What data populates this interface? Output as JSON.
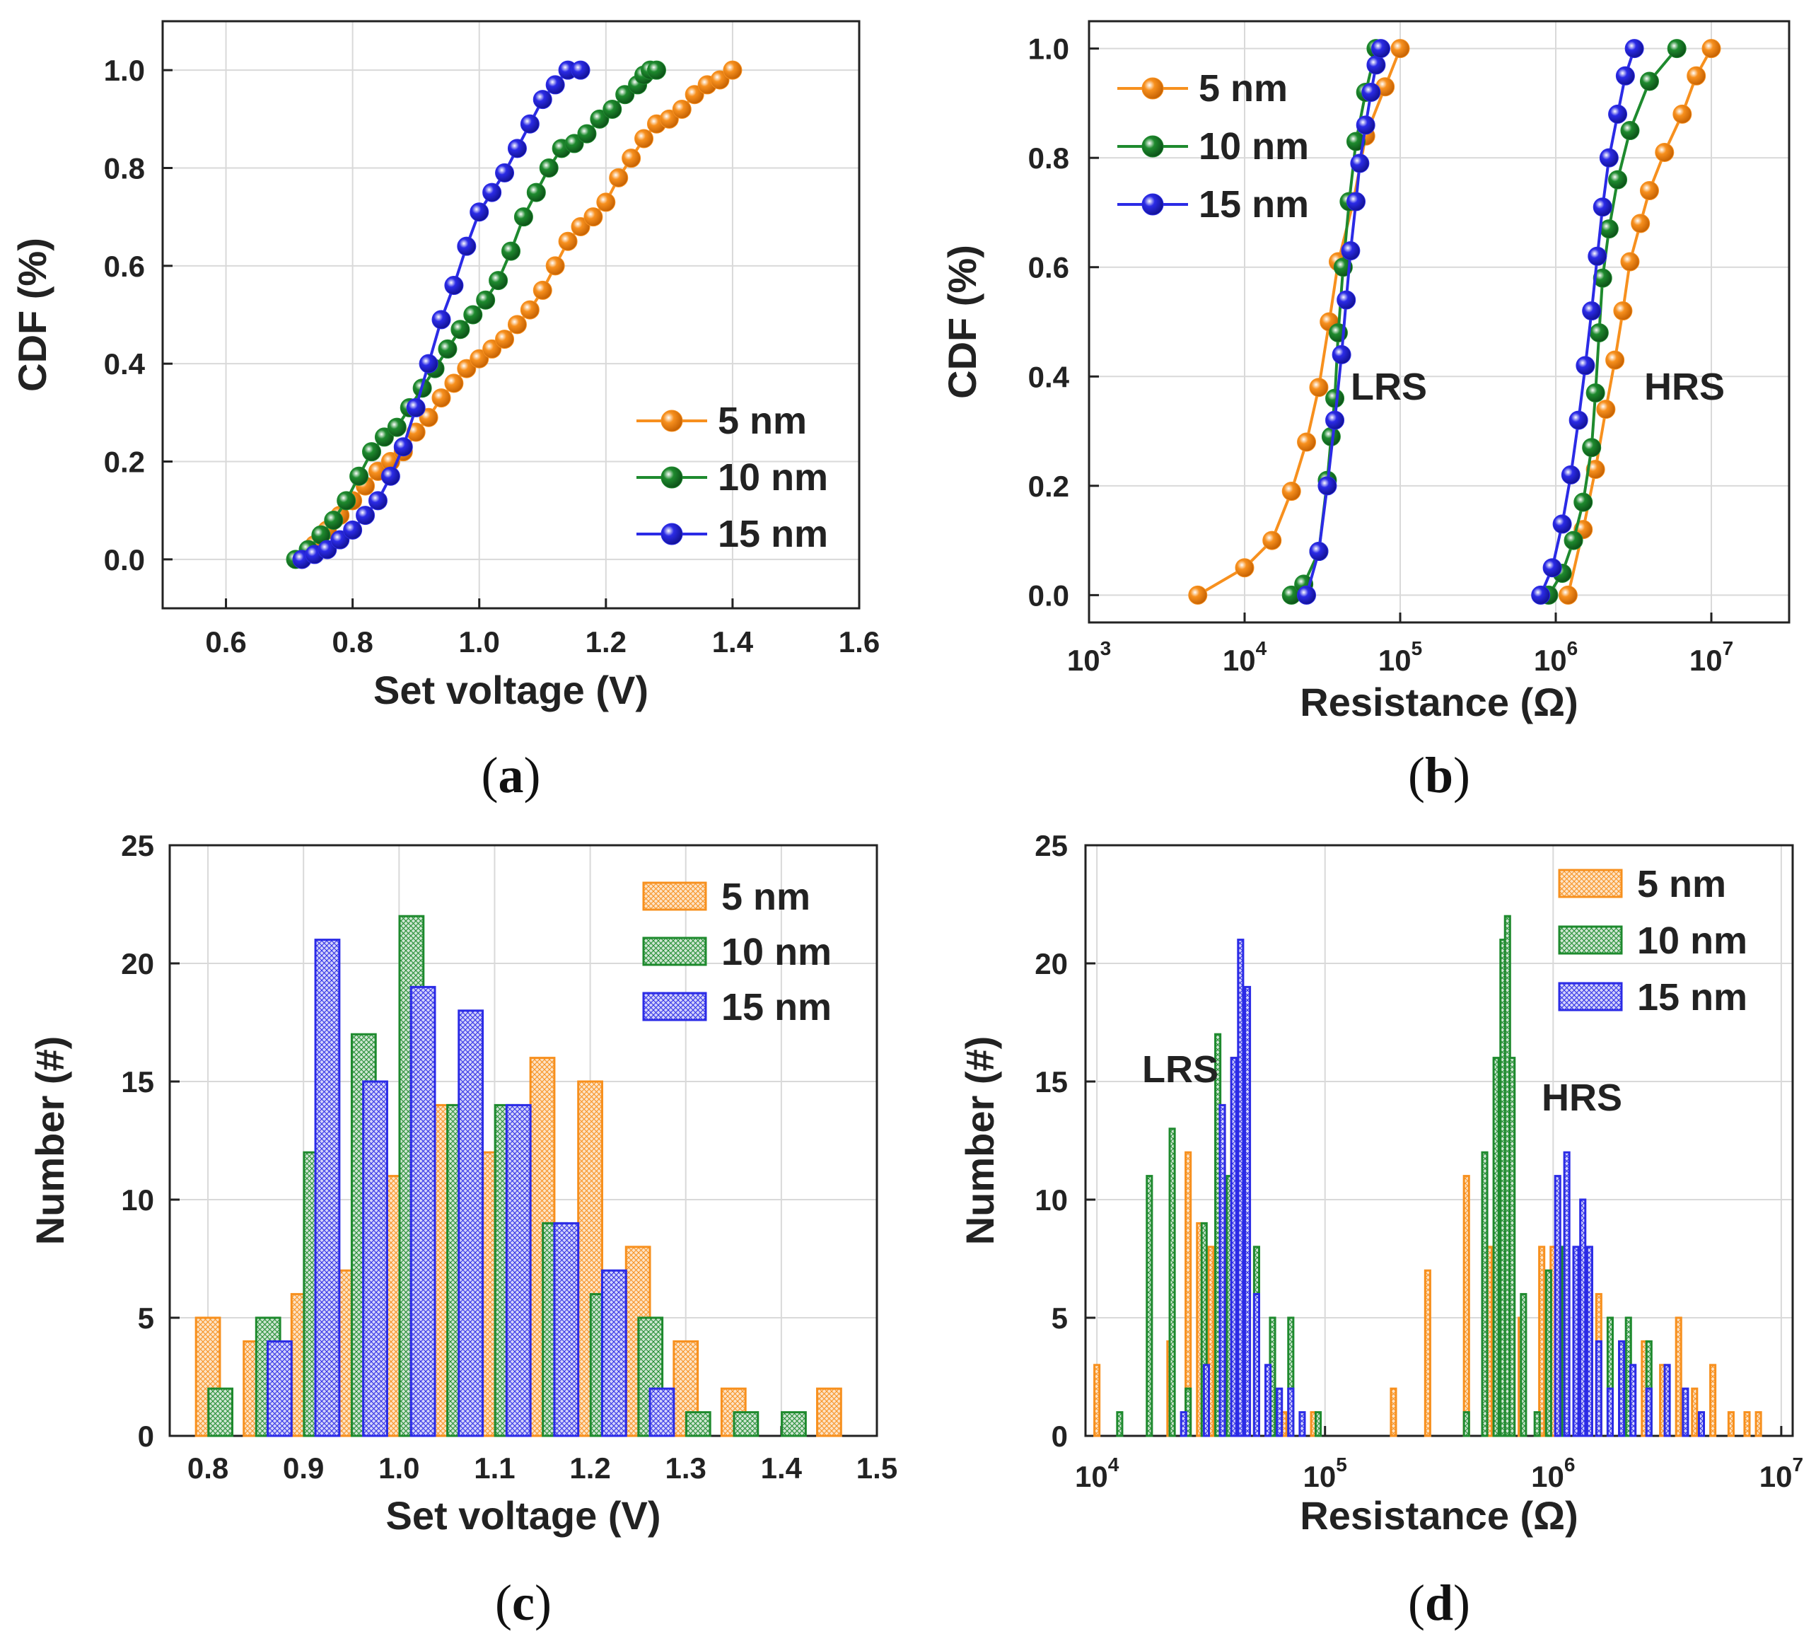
{
  "colors": {
    "s5": "#F7901E",
    "s10": "#1E8A2E",
    "s15": "#2B2BE6",
    "grid": "#d9d9d9",
    "axis": "#222222"
  },
  "chart_data": [
    {
      "id": "a",
      "type": "line",
      "panel_label": "a",
      "xlabel": "Set voltage (V)",
      "ylabel": "CDF (%)",
      "xlim": [
        0.5,
        1.6
      ],
      "ylim": [
        -0.1,
        1.1
      ],
      "xticks": [
        0.6,
        0.8,
        1.0,
        1.2,
        1.4,
        1.6
      ],
      "xtick_labels": [
        "0.6",
        "0.8",
        "1.0",
        "1.2",
        "1.4",
        "1.6"
      ],
      "yticks": [
        0.0,
        0.2,
        0.4,
        0.6,
        0.8,
        1.0
      ],
      "ytick_labels": [
        "0.0",
        "0.2",
        "0.4",
        "0.6",
        "0.8",
        "1.0"
      ],
      "legend": {
        "position": "bottom-right"
      },
      "series": [
        {
          "name": "5 nm",
          "color": "#F7901E",
          "x": [
            0.72,
            0.74,
            0.76,
            0.78,
            0.8,
            0.82,
            0.84,
            0.86,
            0.88,
            0.9,
            0.92,
            0.94,
            0.96,
            0.98,
            1.0,
            1.02,
            1.04,
            1.06,
            1.08,
            1.1,
            1.12,
            1.14,
            1.16,
            1.18,
            1.2,
            1.22,
            1.24,
            1.26,
            1.28,
            1.3,
            1.32,
            1.34,
            1.36,
            1.38,
            1.4
          ],
          "y": [
            0.0,
            0.03,
            0.06,
            0.09,
            0.12,
            0.15,
            0.18,
            0.2,
            0.22,
            0.26,
            0.29,
            0.33,
            0.36,
            0.39,
            0.41,
            0.43,
            0.45,
            0.48,
            0.51,
            0.55,
            0.6,
            0.65,
            0.68,
            0.7,
            0.73,
            0.78,
            0.82,
            0.86,
            0.89,
            0.9,
            0.92,
            0.95,
            0.97,
            0.98,
            1.0
          ]
        },
        {
          "name": "10 nm",
          "color": "#1E8A2E",
          "x": [
            0.71,
            0.73,
            0.75,
            0.77,
            0.79,
            0.81,
            0.83,
            0.85,
            0.87,
            0.89,
            0.91,
            0.93,
            0.95,
            0.97,
            0.99,
            1.01,
            1.03,
            1.05,
            1.07,
            1.09,
            1.11,
            1.13,
            1.15,
            1.17,
            1.19,
            1.21,
            1.23,
            1.25,
            1.26,
            1.27,
            1.28
          ],
          "y": [
            0.0,
            0.02,
            0.05,
            0.08,
            0.12,
            0.17,
            0.22,
            0.25,
            0.27,
            0.31,
            0.35,
            0.39,
            0.43,
            0.47,
            0.5,
            0.53,
            0.57,
            0.63,
            0.7,
            0.75,
            0.8,
            0.84,
            0.85,
            0.87,
            0.9,
            0.92,
            0.95,
            0.97,
            0.99,
            1.0,
            1.0
          ]
        },
        {
          "name": "15 nm",
          "color": "#2B2BE6",
          "x": [
            0.72,
            0.74,
            0.76,
            0.78,
            0.8,
            0.82,
            0.84,
            0.86,
            0.88,
            0.9,
            0.92,
            0.94,
            0.96,
            0.98,
            1.0,
            1.02,
            1.04,
            1.06,
            1.08,
            1.1,
            1.12,
            1.14,
            1.16
          ],
          "y": [
            0.0,
            0.01,
            0.02,
            0.04,
            0.06,
            0.09,
            0.12,
            0.17,
            0.23,
            0.31,
            0.4,
            0.49,
            0.56,
            0.64,
            0.71,
            0.75,
            0.79,
            0.84,
            0.89,
            0.94,
            0.97,
            1.0,
            1.0
          ]
        }
      ]
    },
    {
      "id": "b",
      "type": "line",
      "panel_label": "b",
      "xlabel": "Resistance (Ω)",
      "ylabel": "CDF (%)",
      "xscale": "log",
      "xlim_exp": [
        3,
        7.5
      ],
      "ylim": [
        -0.05,
        1.05
      ],
      "xticks_exp": [
        3,
        4,
        5,
        6,
        7
      ],
      "xtick_labels": [
        "10",
        "10",
        "10",
        "10",
        "10"
      ],
      "xtick_exponents": [
        "3",
        "4",
        "5",
        "6",
        "7"
      ],
      "yticks": [
        0.0,
        0.2,
        0.4,
        0.6,
        0.8,
        1.0
      ],
      "ytick_labels": [
        "0.0",
        "0.2",
        "0.4",
        "0.6",
        "0.8",
        "1.0"
      ],
      "legend": {
        "position": "top-left"
      },
      "annotations": [
        "LRS",
        "HRS"
      ],
      "series": [
        {
          "name": "5 nm",
          "color": "#F7901E",
          "segments": [
            {
              "x": [
                5000,
                10000,
                15000,
                20000,
                25000,
                30000,
                35000,
                40000,
                50000,
                60000,
                80000,
                100000
              ],
              "y": [
                0.0,
                0.05,
                0.1,
                0.19,
                0.28,
                0.38,
                0.5,
                0.61,
                0.72,
                0.84,
                0.93,
                1.0
              ]
            },
            {
              "x": [
                1200000,
                1500000,
                1800000,
                2100000,
                2400000,
                2700000,
                3000000,
                3500000,
                4000000,
                5000000,
                6500000,
                8000000,
                10000000
              ],
              "y": [
                0.0,
                0.12,
                0.23,
                0.34,
                0.43,
                0.52,
                0.61,
                0.68,
                0.74,
                0.81,
                0.88,
                0.95,
                1.0
              ]
            }
          ]
        },
        {
          "name": "10 nm",
          "color": "#1E8A2E",
          "segments": [
            {
              "x": [
                20000,
                24000,
                30000,
                34000,
                36000,
                38000,
                40000,
                43000,
                47000,
                52000,
                60000,
                70000
              ],
              "y": [
                0.0,
                0.02,
                0.08,
                0.21,
                0.29,
                0.36,
                0.48,
                0.6,
                0.72,
                0.83,
                0.92,
                1.0
              ]
            },
            {
              "x": [
                900000,
                1100000,
                1300000,
                1500000,
                1700000,
                1800000,
                1900000,
                2000000,
                2200000,
                2500000,
                3000000,
                4000000,
                6000000
              ],
              "y": [
                0.0,
                0.04,
                0.1,
                0.17,
                0.27,
                0.37,
                0.48,
                0.58,
                0.67,
                0.76,
                0.85,
                0.94,
                1.0
              ]
            }
          ]
        },
        {
          "name": "15 nm",
          "color": "#2B2BE6",
          "segments": [
            {
              "x": [
                25000,
                30000,
                34000,
                38000,
                42000,
                45000,
                48000,
                52000,
                55000,
                60000,
                65000,
                70000,
                75000
              ],
              "y": [
                0.0,
                0.08,
                0.2,
                0.32,
                0.44,
                0.54,
                0.63,
                0.72,
                0.79,
                0.86,
                0.92,
                0.97,
                1.0
              ]
            },
            {
              "x": [
                800000,
                950000,
                1100000,
                1250000,
                1400000,
                1550000,
                1700000,
                1850000,
                2000000,
                2200000,
                2500000,
                2800000,
                3200000
              ],
              "y": [
                0.0,
                0.05,
                0.13,
                0.22,
                0.32,
                0.42,
                0.52,
                0.62,
                0.71,
                0.8,
                0.88,
                0.95,
                1.0
              ]
            }
          ]
        }
      ]
    },
    {
      "id": "c",
      "type": "bar",
      "panel_label": "c",
      "xlabel": "Set voltage (V)",
      "ylabel": "Number (#)",
      "xlim": [
        0.76,
        1.5
      ],
      "ylim": [
        0,
        25
      ],
      "xticks": [
        0.8,
        0.9,
        1.0,
        1.1,
        1.2,
        1.3,
        1.4,
        1.5
      ],
      "xtick_labels": [
        "0.8",
        "0.9",
        "1.0",
        "1.1",
        "1.2",
        "1.3",
        "1.4",
        "1.5"
      ],
      "yticks": [
        0,
        5,
        10,
        15,
        20,
        25
      ],
      "ytick_labels": [
        "0",
        "5",
        "10",
        "15",
        "20",
        "25"
      ],
      "legend": {
        "position": "top-right"
      },
      "bin_width": 0.025,
      "centers": [
        0.8,
        0.85,
        0.9,
        0.95,
        1.0,
        1.05,
        1.1,
        1.15,
        1.2,
        1.25,
        1.3,
        1.35,
        1.4,
        1.45
      ],
      "series": [
        {
          "name": "5 nm",
          "color": "#F7901E",
          "offset": 0.0,
          "values": [
            5,
            4,
            6,
            7,
            11,
            14,
            12,
            16,
            15,
            8,
            4,
            2,
            0,
            2
          ]
        },
        {
          "name": "10 nm",
          "color": "#1E8A2E",
          "offset": 0.013,
          "values": [
            2,
            5,
            12,
            17,
            22,
            14,
            14,
            9,
            6,
            5,
            1,
            1,
            1,
            0
          ]
        },
        {
          "name": "15 nm",
          "color": "#2B2BE6",
          "offset": -0.025,
          "values": [
            0,
            0,
            4,
            21,
            15,
            19,
            18,
            14,
            9,
            7,
            2,
            0,
            0,
            0
          ]
        }
      ]
    },
    {
      "id": "d",
      "type": "bar",
      "panel_label": "d",
      "xlabel": "Resistance (Ω)",
      "ylabel": "Number (#)",
      "xscale": "log",
      "xlim_exp": [
        3.95,
        7.05
      ],
      "ylim": [
        0,
        25
      ],
      "xticks_exp": [
        4,
        5,
        6,
        7
      ],
      "xtick_labels": [
        "10",
        "10",
        "10",
        "10"
      ],
      "xtick_exponents": [
        "4",
        "5",
        "6",
        "7"
      ],
      "yticks": [
        0,
        5,
        10,
        15,
        20,
        25
      ],
      "ytick_labels": [
        "0",
        "5",
        "10",
        "15",
        "20",
        "25"
      ],
      "legend": {
        "position": "top-right"
      },
      "annotations": [
        "LRS",
        "HRS"
      ],
      "bin_width_log": 0.022,
      "series": [
        {
          "name": "5 nm",
          "color": "#F7901E",
          "x_exp": [
            4.0,
            4.32,
            4.4,
            4.45,
            4.5,
            4.55,
            4.6,
            4.65,
            4.7,
            4.75,
            4.82,
            4.95,
            5.3,
            5.45,
            5.62,
            5.72,
            5.8,
            5.86,
            5.95,
            6.0,
            6.1,
            6.2,
            6.3,
            6.4,
            6.48,
            6.55,
            6.62,
            6.7,
            6.78,
            6.85,
            6.9
          ],
          "values": [
            3,
            4,
            12,
            9,
            8,
            14,
            16,
            7,
            5,
            2,
            1,
            1,
            2,
            7,
            11,
            8,
            8,
            5,
            8,
            8,
            7,
            6,
            4,
            4,
            3,
            5,
            2,
            3,
            1,
            1,
            1
          ]
        },
        {
          "name": "10 nm",
          "color": "#1E8A2E",
          "x_exp": [
            4.1,
            4.23,
            4.33,
            4.4,
            4.47,
            4.53,
            4.58,
            4.63,
            4.7,
            4.77,
            4.85,
            4.97,
            5.62,
            5.7,
            5.75,
            5.78,
            5.8,
            5.82,
            5.87,
            5.93,
            5.98,
            6.05,
            6.15,
            6.25,
            6.33,
            6.42
          ],
          "values": [
            1,
            11,
            13,
            2,
            9,
            17,
            11,
            5,
            8,
            5,
            5,
            1,
            1,
            12,
            16,
            21,
            22,
            16,
            6,
            1,
            7,
            8,
            5,
            5,
            5,
            4
          ]
        },
        {
          "name": "15 nm",
          "color": "#2B2BE6",
          "x_exp": [
            4.38,
            4.48,
            4.55,
            4.6,
            4.63,
            4.66,
            4.7,
            4.75,
            4.8,
            4.85,
            4.9,
            6.02,
            6.06,
            6.1,
            6.13,
            6.16,
            6.2,
            6.25,
            6.3,
            6.35,
            6.42,
            6.5,
            6.58,
            6.65
          ],
          "values": [
            1,
            3,
            14,
            16,
            21,
            19,
            6,
            3,
            2,
            2,
            1,
            11,
            12,
            8,
            10,
            8,
            4,
            2,
            4,
            3,
            2,
            3,
            2,
            1
          ]
        }
      ]
    }
  ]
}
